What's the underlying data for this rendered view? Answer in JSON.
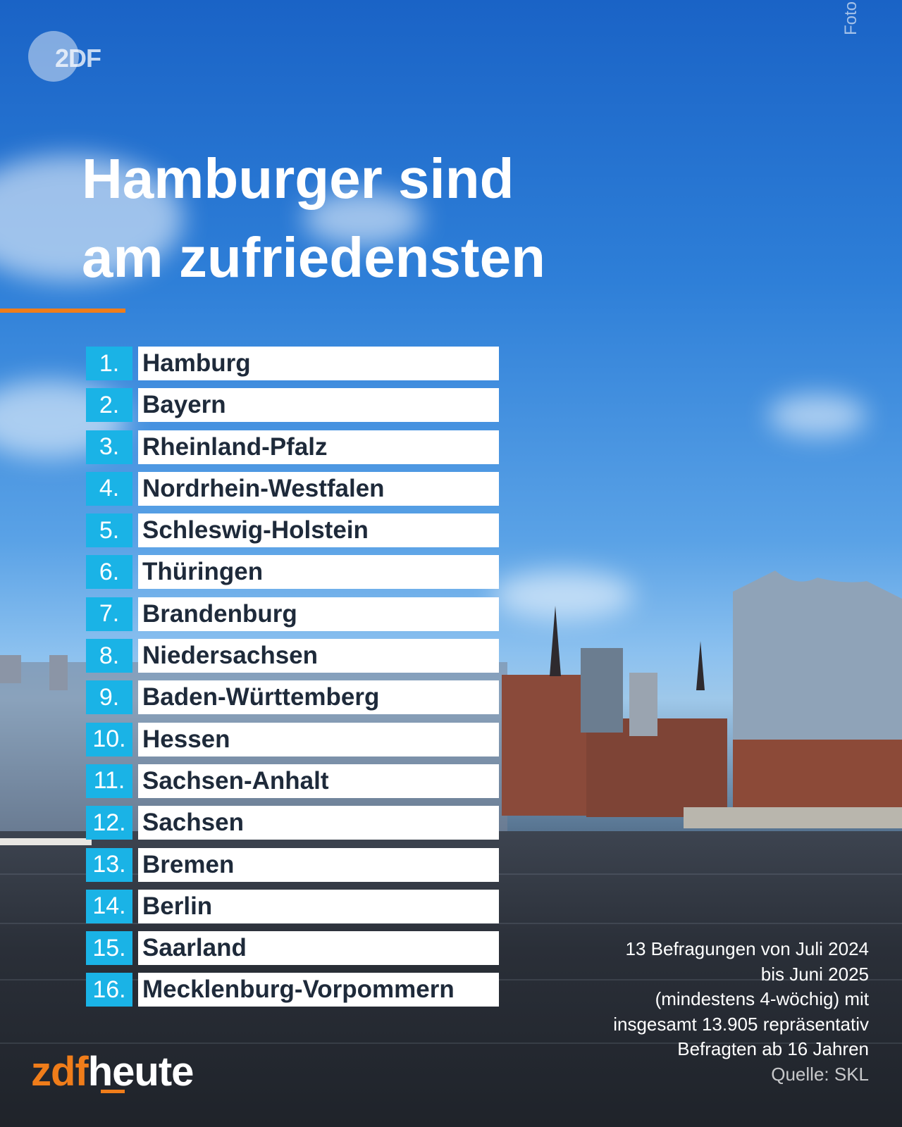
{
  "logo": {
    "text": "2DF"
  },
  "photo_credit": "Foto: iStock/golero, Symbolbild",
  "headline": {
    "line1": "Hamburger sind",
    "line2": "am zufriedensten"
  },
  "ranking": [
    {
      "rank": "1.",
      "state": "Hamburg"
    },
    {
      "rank": "2.",
      "state": "Bayern"
    },
    {
      "rank": "3.",
      "state": "Rheinland-Pfalz"
    },
    {
      "rank": "4.",
      "state": "Nordrhein-Westfalen"
    },
    {
      "rank": "5.",
      "state": "Schleswig-Holstein"
    },
    {
      "rank": "6.",
      "state": "Thüringen"
    },
    {
      "rank": "7.",
      "state": "Brandenburg"
    },
    {
      "rank": "8.",
      "state": "Niedersachsen"
    },
    {
      "rank": "9.",
      "state": "Baden-Württemberg"
    },
    {
      "rank": "10.",
      "state": "Hessen"
    },
    {
      "rank": "11.",
      "state": "Sachsen-Anhalt"
    },
    {
      "rank": "12.",
      "state": "Sachsen"
    },
    {
      "rank": "13.",
      "state": "Bremen"
    },
    {
      "rank": "14.",
      "state": "Berlin"
    },
    {
      "rank": "15.",
      "state": "Saarland"
    },
    {
      "rank": "16.",
      "state": "Mecklenburg-Vorpommern"
    }
  ],
  "footnote": {
    "lines": [
      "13 Befragungen von Juli 2024",
      "bis Juni 2025",
      "(mindestens 4-wöchig) mit",
      "insgesamt 13.905 repräsentativ",
      "Befragten ab 16 Jahren"
    ],
    "source": "Quelle: SKL"
  },
  "brand": {
    "part1": "zdf",
    "part2": "heute"
  },
  "colors": {
    "rank_badge": "#1ab3e6",
    "accent": "#f07d1a",
    "name_bg": "#ffffff"
  }
}
